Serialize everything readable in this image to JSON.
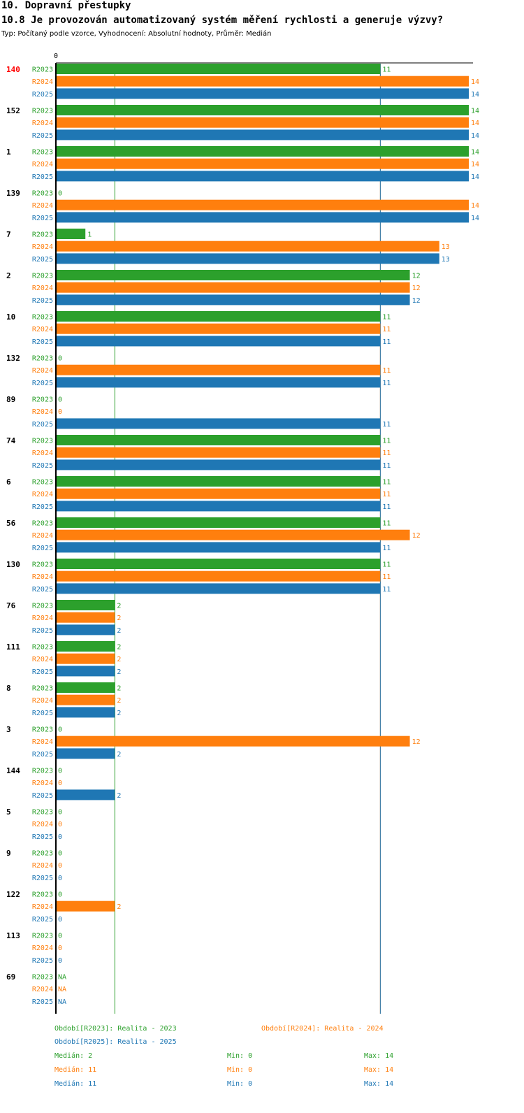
{
  "header": {
    "section": "10. Dopravní přestupky",
    "question": "10.8 Je provozován automatizovaný systém měření rychlosti a generuje výzvy?",
    "meta": "Typ: Počítaný podle vzorce, Vyhodnocení: Absolutní hodnoty, Průměr: Medián"
  },
  "colors": {
    "R2023": "#2ca02c",
    "R2024": "#ff7f0e",
    "R2025": "#1f77b4",
    "highlight": "#ff0000"
  },
  "chart_data": {
    "type": "bar",
    "orientation": "horizontal",
    "axis_zero_label": "0",
    "xlim": [
      0,
      14
    ],
    "series_names": [
      "R2023",
      "R2024",
      "R2025"
    ],
    "highlight_category": "140",
    "categories": [
      "140",
      "152",
      "1",
      "139",
      "7",
      "2",
      "10",
      "132",
      "89",
      "74",
      "6",
      "56",
      "130",
      "76",
      "111",
      "8",
      "3",
      "144",
      "5",
      "9",
      "122",
      "113",
      "69"
    ],
    "series": [
      {
        "name": "R2023",
        "values": [
          11,
          14,
          14,
          0,
          1,
          12,
          11,
          0,
          0,
          11,
          11,
          11,
          11,
          2,
          2,
          2,
          0,
          0,
          0,
          0,
          0,
          0,
          "NA"
        ]
      },
      {
        "name": "R2024",
        "values": [
          14,
          14,
          14,
          14,
          13,
          12,
          11,
          11,
          0,
          11,
          11,
          12,
          11,
          2,
          2,
          2,
          12,
          0,
          0,
          0,
          2,
          0,
          "NA"
        ]
      },
      {
        "name": "R2025",
        "values": [
          14,
          14,
          14,
          14,
          13,
          12,
          11,
          11,
          11,
          11,
          11,
          11,
          11,
          2,
          2,
          2,
          2,
          2,
          0,
          0,
          0,
          0,
          "NA"
        ]
      }
    ],
    "reference_lines": [
      {
        "series": "R2023",
        "label": "Medián",
        "value": 2
      },
      {
        "series": "R2024",
        "label": "Medián",
        "value": 11
      },
      {
        "series": "R2025",
        "label": "Medián",
        "value": 11
      }
    ]
  },
  "legend": {
    "r2023": "Období[R2023]: Realita - 2023",
    "r2024": "Období[R2024]: Realita - 2024",
    "r2025": "Období[R2025]: Realita - 2025"
  },
  "stats": [
    {
      "median": "Medián: 2",
      "min": "Min: 0",
      "max": "Max: 14"
    },
    {
      "median": "Medián: 11",
      "min": "Min: 0",
      "max": "Max: 14"
    },
    {
      "median": "Medián: 11",
      "min": "Min: 0",
      "max": "Max: 14"
    }
  ]
}
